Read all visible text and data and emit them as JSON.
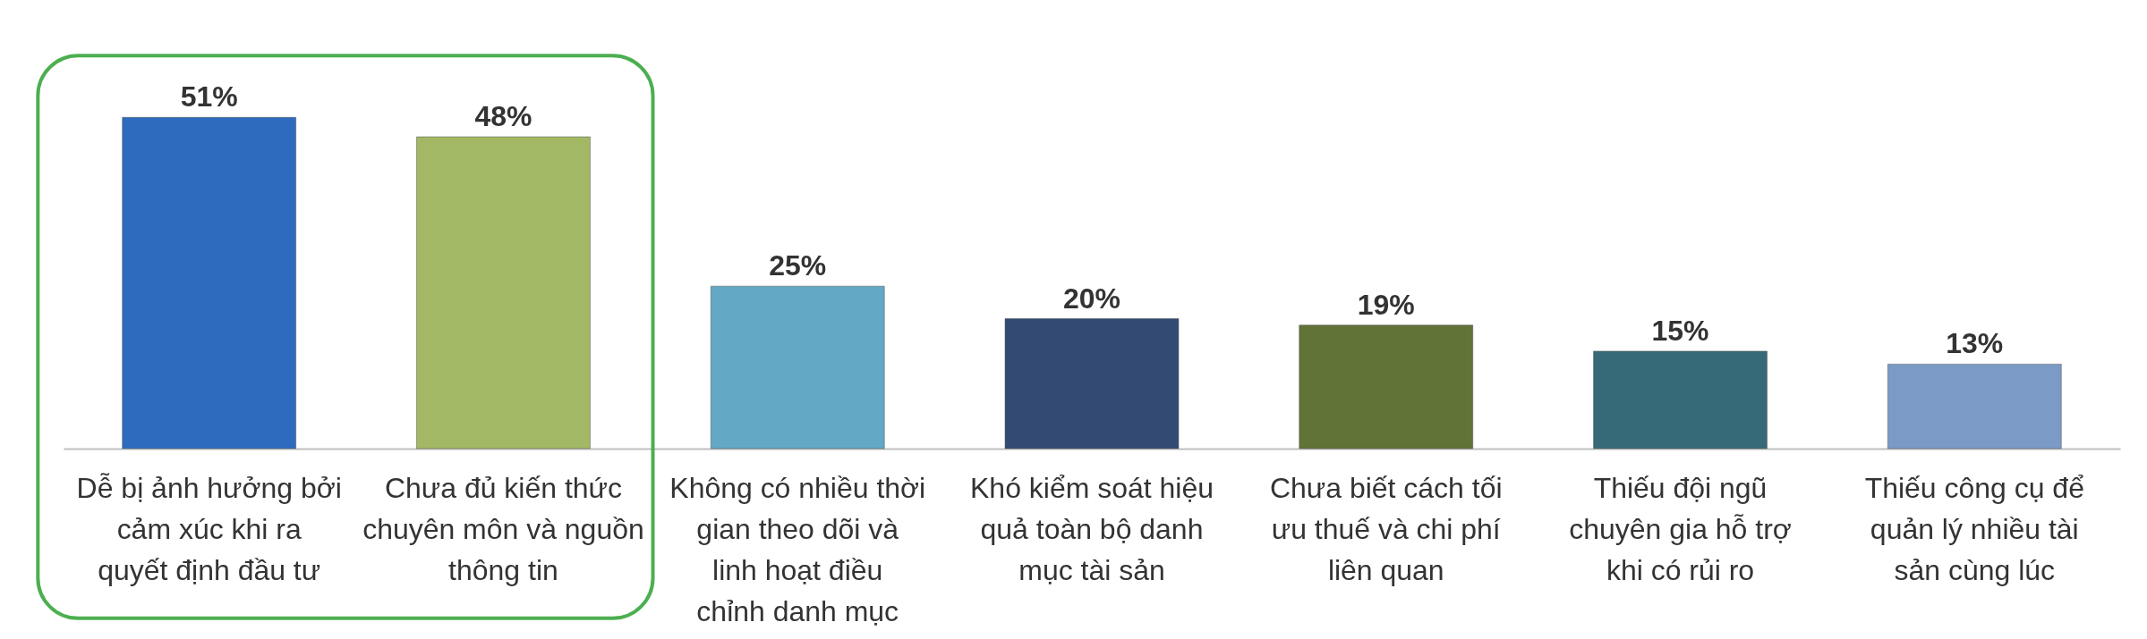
{
  "chart_data": {
    "type": "bar",
    "categories": [
      "Dễ bị ảnh hưởng bởi cảm xúc khi ra quyết định đầu tư",
      "Chưa đủ kiến thức chuyên môn và nguồn thông tin",
      "Không có nhiều thời gian theo dõi và linh hoạt điều chỉnh danh mục",
      "Khó kiểm soát hiệu quả toàn bộ danh mục tài sản",
      "Chưa biết cách tối ưu thuế và chi phí liên quan",
      "Thiếu đội ngũ chuyên gia hỗ trợ khi có rủi ro",
      "Thiếu công cụ để quản lý nhiều tài sản cùng lúc"
    ],
    "values": [
      51,
      48,
      25,
      20,
      19,
      15,
      13
    ],
    "colors": [
      "#2e6bbf",
      "#a2b865",
      "#63a8c4",
      "#334b73",
      "#617337",
      "#376a78",
      "#7b9ac6"
    ],
    "value_labels": [
      "51%",
      "48%",
      "25%",
      "20%",
      "19%",
      "15%",
      "13%"
    ],
    "grid": false
  }
}
